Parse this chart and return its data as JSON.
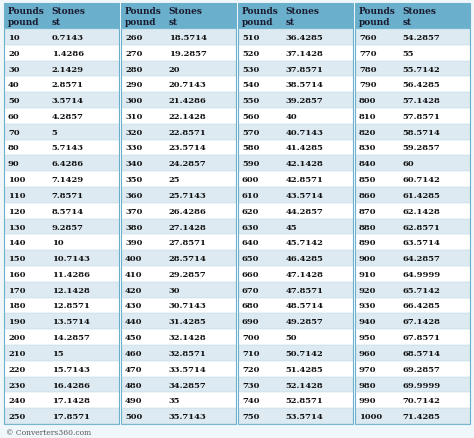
{
  "header_bg": "#6ab0cc",
  "row_bg_odd": "#ddeaf2",
  "row_bg_even": "#ffffff",
  "outer_bg": "#f0f7fb",
  "header_text_color": "#1a1a2e",
  "data_text_color": "#111111",
  "footer_text": "© Converters360.com",
  "separator_color": "#6ab0cc",
  "columns": [
    {
      "header": [
        "Pounds",
        "pound"
      ],
      "data": [
        "10",
        "20",
        "30",
        "40",
        "50",
        "60",
        "70",
        "80",
        "90",
        "100",
        "110",
        "120",
        "130",
        "140",
        "150",
        "160",
        "170",
        "180",
        "190",
        "200",
        "210",
        "220",
        "230",
        "240",
        "250"
      ]
    },
    {
      "header": [
        "Stones",
        "st"
      ],
      "data": [
        "0.7143",
        "1.4286",
        "2.1429",
        "2.8571",
        "3.5714",
        "4.2857",
        "5",
        "5.7143",
        "6.4286",
        "7.1429",
        "7.8571",
        "8.5714",
        "9.2857",
        "10",
        "10.7143",
        "11.4286",
        "12.1428",
        "12.8571",
        "13.5714",
        "14.2857",
        "15",
        "15.7143",
        "16.4286",
        "17.1428",
        "17.8571"
      ]
    },
    {
      "header": [
        "Pounds",
        "pound"
      ],
      "data": [
        "260",
        "270",
        "280",
        "290",
        "300",
        "310",
        "320",
        "330",
        "340",
        "350",
        "360",
        "370",
        "380",
        "390",
        "400",
        "410",
        "420",
        "430",
        "440",
        "450",
        "460",
        "470",
        "480",
        "490",
        "500"
      ]
    },
    {
      "header": [
        "Stones",
        "st"
      ],
      "data": [
        "18.5714",
        "19.2857",
        "20",
        "20.7143",
        "21.4286",
        "22.1428",
        "22.8571",
        "23.5714",
        "24.2857",
        "25",
        "25.7143",
        "26.4286",
        "27.1428",
        "27.8571",
        "28.5714",
        "29.2857",
        "30",
        "30.7143",
        "31.4285",
        "32.1428",
        "32.8571",
        "33.5714",
        "34.2857",
        "35",
        "35.7143"
      ]
    },
    {
      "header": [
        "Pounds",
        "pound"
      ],
      "data": [
        "510",
        "520",
        "530",
        "540",
        "550",
        "560",
        "570",
        "580",
        "590",
        "600",
        "610",
        "620",
        "630",
        "640",
        "650",
        "660",
        "670",
        "680",
        "690",
        "700",
        "710",
        "720",
        "730",
        "740",
        "750"
      ]
    },
    {
      "header": [
        "Stones",
        "st"
      ],
      "data": [
        "36.4285",
        "37.1428",
        "37.8571",
        "38.5714",
        "39.2857",
        "40",
        "40.7143",
        "41.4285",
        "42.1428",
        "42.8571",
        "43.5714",
        "44.2857",
        "45",
        "45.7142",
        "46.4285",
        "47.1428",
        "47.8571",
        "48.5714",
        "49.2857",
        "50",
        "50.7142",
        "51.4285",
        "52.1428",
        "52.8571",
        "53.5714"
      ]
    },
    {
      "header": [
        "Pounds",
        "pound"
      ],
      "data": [
        "760",
        "770",
        "780",
        "790",
        "800",
        "810",
        "820",
        "830",
        "840",
        "850",
        "860",
        "870",
        "880",
        "890",
        "900",
        "910",
        "920",
        "930",
        "940",
        "950",
        "960",
        "970",
        "980",
        "990",
        "1000"
      ]
    },
    {
      "header": [
        "Stones",
        "st"
      ],
      "data": [
        "54.2857",
        "55",
        "55.7142",
        "56.4285",
        "57.1428",
        "57.8571",
        "58.5714",
        "59.2857",
        "60",
        "60.7142",
        "61.4285",
        "62.1428",
        "62.8571",
        "63.5714",
        "64.2857",
        "64.9999",
        "65.7142",
        "66.4285",
        "67.1428",
        "67.8571",
        "68.5714",
        "69.2857",
        "69.9999",
        "70.7142",
        "71.4285"
      ]
    }
  ]
}
